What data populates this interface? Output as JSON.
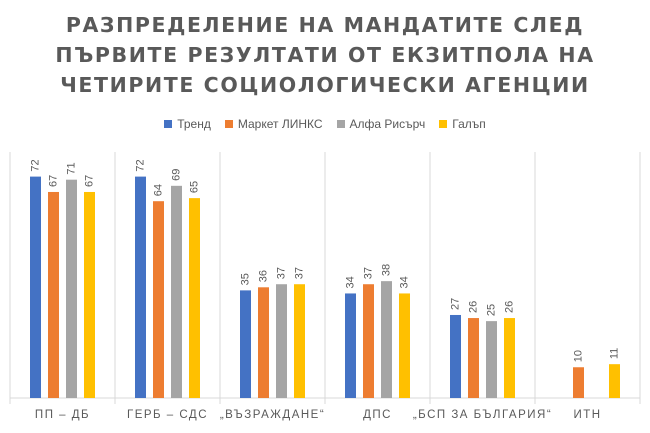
{
  "chart_data": {
    "type": "bar",
    "title_lines": [
      "РАЗПРЕДЕЛЕНИЕ НА МАНДАТИТЕ СЛЕД",
      "ПЪРВИТЕ РЕЗУЛТАТИ ОТ ЕКЗИТПОЛА НА",
      "ЧЕТИРИТЕ СОЦИОЛОГИЧЕСКИ АГЕНЦИИ"
    ],
    "categories": [
      "ПП – ДБ",
      "ГЕРБ – СДС",
      "„Възраждане“",
      "ДПС",
      "„БСП за България“",
      "ИТН"
    ],
    "series": [
      {
        "name": "Тренд",
        "color": "#4472C4",
        "values": [
          72,
          72,
          35,
          34,
          27,
          null
        ]
      },
      {
        "name": "Маркет ЛИНКС",
        "color": "#ED7D31",
        "values": [
          67,
          64,
          36,
          37,
          26,
          10
        ]
      },
      {
        "name": "Алфа Рисърч",
        "color": "#A5A5A5",
        "values": [
          71,
          69,
          37,
          38,
          25,
          null
        ]
      },
      {
        "name": "Галъп",
        "color": "#FFC000",
        "values": [
          67,
          65,
          37,
          34,
          26,
          11
        ]
      }
    ],
    "ylim": [
      0,
      80
    ],
    "legend_position": "top",
    "grid": false,
    "data_labels": true
  }
}
